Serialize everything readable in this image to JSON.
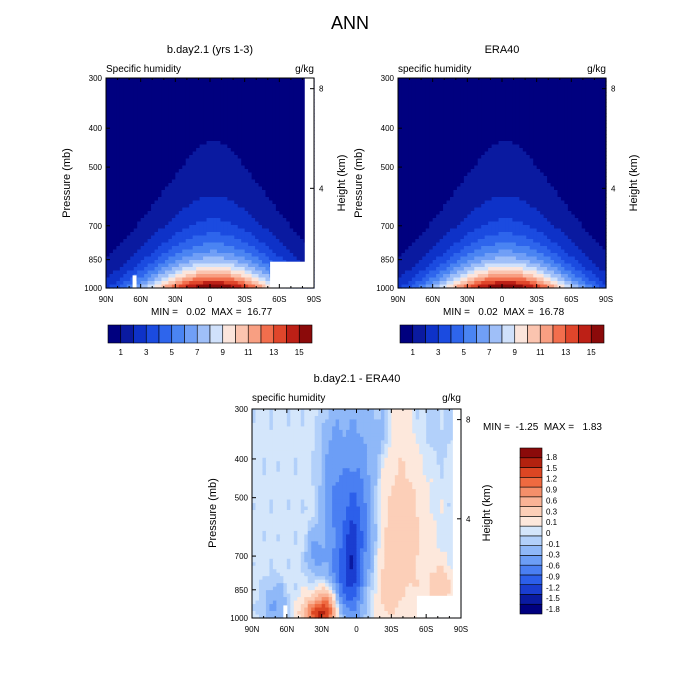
{
  "figure_title": "ANN",
  "colors": {
    "abs_scale": [
      "#00007f",
      "#0a1aa0",
      "#0e32c8",
      "#1b4be0",
      "#2e65ec",
      "#4a84f2",
      "#709ff6",
      "#9fbff8",
      "#d0e1fb",
      "#fbe5dc",
      "#fbc4af",
      "#f89f82",
      "#f26e4d",
      "#e0462b",
      "#bd2016",
      "#8b0a0a"
    ],
    "diff_scale": [
      "#00007f",
      "#0a1aa0",
      "#1a3dd0",
      "#2c5fea",
      "#4a7ff2",
      "#6c9ef6",
      "#8fb8f8",
      "#b2d0fa",
      "#d4e6fb",
      "#fde8dc",
      "#fccfb8",
      "#fab396",
      "#f58f6a",
      "#ef6a40",
      "#dc4623",
      "#b3220f",
      "#8b0a0a"
    ]
  },
  "chart_data": [
    {
      "type": "heatmap",
      "title": "b.day2.1 (yrs 1-3)",
      "left_label": "Specific humidity",
      "unit": "g/kg",
      "ylabel": "Pressure (mb)",
      "ylabel_right": "Height (km)",
      "x_ticks": [
        "90N",
        "60N",
        "30N",
        "0",
        "30S",
        "60S",
        "90S"
      ],
      "x_values": [
        90,
        60,
        30,
        0,
        -30,
        -60,
        -90
      ],
      "y_ticks": [
        "300",
        "400",
        "500",
        "700",
        "850",
        "1000"
      ],
      "y_values": [
        300,
        400,
        500,
        700,
        850,
        1000
      ],
      "ylim": [
        300,
        1000
      ],
      "xlim": [
        90,
        -90
      ],
      "y_scale": "log",
      "right_ticks": [
        "8",
        "4"
      ],
      "right_values": [
        8,
        4
      ],
      "stats": "MIN =   0.02  MAX =  16.77",
      "colorbar_labels": [
        "1",
        "3",
        "5",
        "7",
        "9",
        "11",
        "13",
        "15"
      ],
      "colorbar_levels": [
        1,
        2,
        3,
        4,
        5,
        6,
        7,
        8,
        9,
        10,
        11,
        12,
        13,
        14,
        15
      ],
      "field": {
        "max": 16.77,
        "min": 0.02,
        "peak_lat": -3,
        "scale_height_mb": 180
      },
      "missing_regions": [
        {
          "lat_from": 67,
          "lat_to": 64,
          "p_from": 930,
          "p_to": 1000
        },
        {
          "lat_from": -52,
          "lat_to": -90,
          "p_from": 860,
          "p_to": 1000
        },
        {
          "lat_from": -82,
          "lat_to": -90,
          "p_from": 300,
          "p_to": 1000
        }
      ]
    },
    {
      "type": "heatmap",
      "title": "ERA40",
      "left_label": "specific humidity",
      "unit": "g/kg",
      "ylabel": "Pressure (mb)",
      "ylabel_right": "Height (km)",
      "x_ticks": [
        "90N",
        "60N",
        "30N",
        "0",
        "30S",
        "60S",
        "90S"
      ],
      "x_values": [
        90,
        60,
        30,
        0,
        -30,
        -60,
        -90
      ],
      "y_ticks": [
        "300",
        "400",
        "500",
        "700",
        "850",
        "1000"
      ],
      "y_values": [
        300,
        400,
        500,
        700,
        850,
        1000
      ],
      "ylim": [
        300,
        1000
      ],
      "xlim": [
        90,
        -90
      ],
      "y_scale": "log",
      "right_ticks": [
        "8",
        "4"
      ],
      "right_values": [
        8,
        4
      ],
      "stats": "MIN =   0.02  MAX =  16.78",
      "colorbar_labels": [
        "1",
        "3",
        "5",
        "7",
        "9",
        "11",
        "13",
        "15"
      ],
      "colorbar_levels": [
        1,
        2,
        3,
        4,
        5,
        6,
        7,
        8,
        9,
        10,
        11,
        12,
        13,
        14,
        15
      ],
      "field": {
        "max": 16.78,
        "min": 0.02,
        "peak_lat": -3,
        "scale_height_mb": 180
      },
      "missing_regions": []
    },
    {
      "type": "heatmap",
      "title": "b.day2.1 - ERA40",
      "left_label": "specific humidity",
      "unit": "g/kg",
      "ylabel": "Pressure (mb)",
      "ylabel_right": "Height (km)",
      "x_ticks": [
        "90N",
        "60N",
        "30N",
        "0",
        "30S",
        "60S",
        "90S"
      ],
      "x_values": [
        90,
        60,
        30,
        0,
        -30,
        -60,
        -90
      ],
      "y_ticks": [
        "300",
        "400",
        "500",
        "700",
        "850",
        "1000"
      ],
      "y_values": [
        300,
        400,
        500,
        700,
        850,
        1000
      ],
      "ylim": [
        300,
        1000
      ],
      "xlim": [
        90,
        -90
      ],
      "y_scale": "log",
      "right_ticks": [
        "8",
        "4"
      ],
      "right_values": [
        8,
        4
      ],
      "stats": "MIN =  -1.25  MAX =   1.83",
      "colorbar_labels": [
        "1.8",
        "1.5",
        "1.2",
        "0.9",
        "0.6",
        "0.3",
        "0.1",
        "0",
        "-0.1",
        "-0.3",
        "-0.6",
        "-0.9",
        "-1.2",
        "-1.5",
        "-1.8"
      ],
      "colorbar_levels": [
        -1.8,
        -1.5,
        -1.2,
        -0.9,
        -0.6,
        -0.3,
        -0.1,
        0,
        0.1,
        0.3,
        0.6,
        0.9,
        1.2,
        1.5,
        1.8
      ],
      "features": [
        {
          "lat": 3,
          "p": 690,
          "amp": -1.1,
          "sx": 6,
          "sp": 200
        },
        {
          "lat": 14,
          "p": 800,
          "amp": -0.8,
          "sx": 9,
          "sp": 140
        },
        {
          "lat": 18,
          "p": 480,
          "amp": -0.6,
          "sx": 8,
          "sp": 130
        },
        {
          "lat": -8,
          "p": 560,
          "amp": -0.5,
          "sx": 7,
          "sp": 180
        },
        {
          "lat": 32,
          "p": 975,
          "amp": 1.75,
          "sx": 9,
          "sp": 55
        },
        {
          "lat": 24,
          "p": 900,
          "amp": 0.7,
          "sx": 6,
          "sp": 70
        },
        {
          "lat": -40,
          "p": 640,
          "amp": 0.45,
          "sx": 14,
          "sp": 220
        },
        {
          "lat": -72,
          "p": 830,
          "amp": 0.45,
          "sx": 7,
          "sp": 70
        },
        {
          "lat": -26,
          "p": 870,
          "amp": 0.3,
          "sx": 6,
          "sp": 100
        },
        {
          "lat": 70,
          "p": 930,
          "amp": -0.35,
          "sx": 7,
          "sp": 80
        },
        {
          "lat": 36,
          "p": 690,
          "amp": -0.4,
          "sx": 5,
          "sp": 60
        },
        {
          "lat": -22,
          "p": 340,
          "amp": -0.2,
          "sx": 6,
          "sp": 50
        },
        {
          "lat": -62,
          "p": 330,
          "amp": -0.12,
          "sx": 14,
          "sp": 70
        }
      ],
      "missing_regions": [
        {
          "lat_from": 63,
          "lat_to": 60,
          "p_from": 930,
          "p_to": 1000
        },
        {
          "lat_from": -52,
          "lat_to": -90,
          "p_from": 880,
          "p_to": 1000
        },
        {
          "lat_from": -83,
          "lat_to": -90,
          "p_from": 300,
          "p_to": 1000
        }
      ]
    }
  ]
}
